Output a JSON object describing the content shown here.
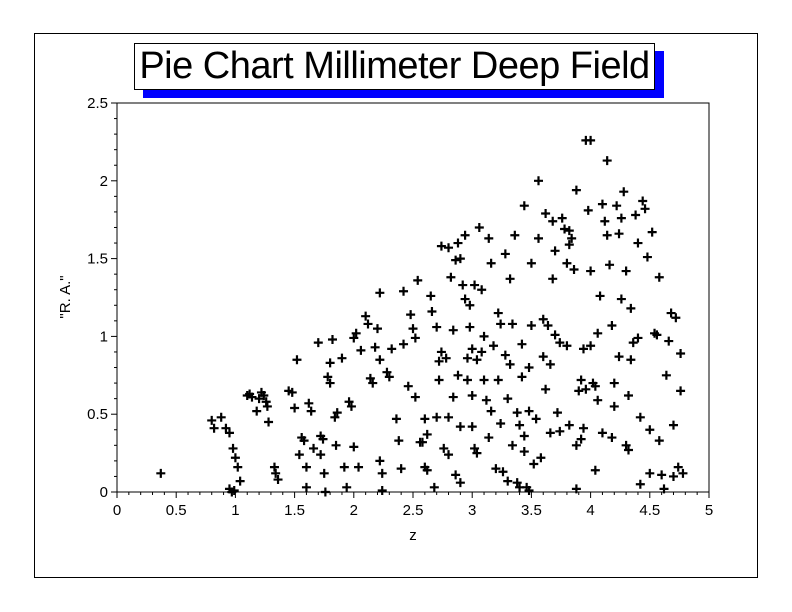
{
  "chart_data": {
    "type": "scatter",
    "title": "Pie Chart Millimeter Deep Field",
    "xlabel": "z",
    "ylabel": "\"R. A.\"",
    "xlim": [
      0,
      5
    ],
    "ylim": [
      0,
      2.5
    ],
    "xticks": [
      "0",
      "0.5",
      "1",
      "1.5",
      "2",
      "2.5",
      "3",
      "3.5",
      "4",
      "4.5",
      "5"
    ],
    "yticks": [
      "0",
      "0.5",
      "1",
      "1.5",
      "2",
      "2.5"
    ],
    "grid": false,
    "legend": "none",
    "marker": "plus",
    "colors": {
      "marker": "#000000",
      "title_shadow": "#0000ff"
    },
    "points": [
      [
        0.37,
        0.12
      ],
      [
        0.8,
        0.46
      ],
      [
        0.82,
        0.41
      ],
      [
        0.88,
        0.48
      ],
      [
        0.92,
        0.41
      ],
      [
        0.95,
        0.38
      ],
      [
        0.95,
        0.02
      ],
      [
        0.97,
        0.0
      ],
      [
        0.99,
        0.01
      ],
      [
        0.98,
        0.28
      ],
      [
        1.0,
        0.22
      ],
      [
        1.02,
        0.16
      ],
      [
        1.04,
        0.07
      ],
      [
        1.1,
        0.62
      ],
      [
        1.12,
        0.63
      ],
      [
        1.14,
        0.61
      ],
      [
        1.18,
        0.52
      ],
      [
        1.2,
        0.6
      ],
      [
        1.22,
        0.64
      ],
      [
        1.24,
        0.62
      ],
      [
        1.26,
        0.58
      ],
      [
        1.27,
        0.55
      ],
      [
        1.28,
        0.45
      ],
      [
        1.33,
        0.16
      ],
      [
        1.34,
        0.12
      ],
      [
        1.36,
        0.08
      ],
      [
        1.45,
        0.65
      ],
      [
        1.48,
        0.64
      ],
      [
        1.5,
        0.54
      ],
      [
        1.52,
        0.85
      ],
      [
        1.54,
        0.24
      ],
      [
        1.56,
        0.35
      ],
      [
        1.58,
        0.33
      ],
      [
        1.6,
        0.16
      ],
      [
        1.6,
        0.03
      ],
      [
        1.62,
        0.57
      ],
      [
        1.64,
        0.52
      ],
      [
        1.66,
        0.28
      ],
      [
        1.7,
        0.96
      ],
      [
        1.72,
        0.36
      ],
      [
        1.72,
        0.24
      ],
      [
        1.74,
        0.34
      ],
      [
        1.75,
        0.12
      ],
      [
        1.76,
        0.0
      ],
      [
        1.78,
        0.74
      ],
      [
        1.8,
        0.7
      ],
      [
        1.8,
        0.83
      ],
      [
        1.82,
        0.98
      ],
      [
        1.84,
        0.48
      ],
      [
        1.85,
        0.3
      ],
      [
        1.86,
        0.51
      ],
      [
        1.9,
        0.86
      ],
      [
        1.92,
        0.16
      ],
      [
        1.94,
        0.03
      ],
      [
        1.96,
        0.58
      ],
      [
        1.98,
        0.55
      ],
      [
        2.0,
        0.99
      ],
      [
        2.02,
        1.02
      ],
      [
        2.0,
        0.29
      ],
      [
        2.04,
        0.16
      ],
      [
        2.06,
        0.91
      ],
      [
        2.1,
        1.13
      ],
      [
        2.12,
        1.08
      ],
      [
        2.14,
        0.73
      ],
      [
        2.16,
        0.7
      ],
      [
        2.18,
        0.93
      ],
      [
        2.2,
        1.05
      ],
      [
        2.22,
        0.2
      ],
      [
        2.24,
        0.12
      ],
      [
        2.22,
        0.85
      ],
      [
        2.24,
        0.01
      ],
      [
        2.22,
        1.28
      ],
      [
        2.28,
        0.77
      ],
      [
        2.3,
        0.74
      ],
      [
        2.32,
        0.92
      ],
      [
        2.36,
        0.47
      ],
      [
        2.38,
        0.33
      ],
      [
        2.4,
        0.15
      ],
      [
        2.42,
        0.95
      ],
      [
        2.42,
        1.29
      ],
      [
        2.46,
        0.68
      ],
      [
        2.48,
        1.14
      ],
      [
        2.5,
        1.05
      ],
      [
        2.52,
        0.99
      ],
      [
        2.52,
        0.61
      ],
      [
        2.54,
        1.36
      ],
      [
        2.56,
        0.32
      ],
      [
        2.58,
        0.32
      ],
      [
        2.6,
        0.47
      ],
      [
        2.6,
        0.16
      ],
      [
        2.62,
        0.14
      ],
      [
        2.62,
        0.37
      ],
      [
        2.65,
        1.26
      ],
      [
        2.66,
        1.16
      ],
      [
        2.68,
        0.03
      ],
      [
        2.7,
        0.48
      ],
      [
        2.7,
        1.06
      ],
      [
        2.72,
        0.72
      ],
      [
        2.72,
        0.84
      ],
      [
        2.74,
        0.9
      ],
      [
        2.74,
        1.58
      ],
      [
        2.76,
        0.28
      ],
      [
        2.78,
        0.86
      ],
      [
        2.8,
        0.48
      ],
      [
        2.8,
        0.24
      ],
      [
        2.8,
        1.57
      ],
      [
        2.82,
        1.38
      ],
      [
        2.84,
        1.04
      ],
      [
        2.84,
        0.61
      ],
      [
        2.86,
        1.49
      ],
      [
        2.86,
        0.11
      ],
      [
        2.88,
        0.75
      ],
      [
        2.88,
        1.6
      ],
      [
        2.9,
        0.42
      ],
      [
        2.9,
        1.5
      ],
      [
        2.9,
        0.06
      ],
      [
        2.92,
        1.33
      ],
      [
        2.94,
        1.65
      ],
      [
        2.94,
        1.24
      ],
      [
        2.96,
        0.86
      ],
      [
        2.96,
        0.72
      ],
      [
        2.98,
        1.06
      ],
      [
        3.0,
        0.92
      ],
      [
        3.0,
        0.62
      ],
      [
        3.0,
        0.42
      ],
      [
        3.02,
        0.28
      ],
      [
        3.02,
        1.33
      ],
      [
        3.04,
        0.85
      ],
      [
        3.04,
        0.25
      ],
      [
        3.06,
        1.7
      ],
      [
        3.08,
        1.3
      ],
      [
        3.08,
        0.9
      ],
      [
        3.1,
        1.0
      ],
      [
        3.1,
        0.72
      ],
      [
        3.12,
        0.59
      ],
      [
        3.14,
        0.35
      ],
      [
        3.14,
        1.63
      ],
      [
        3.16,
        1.47
      ],
      [
        3.18,
        0.94
      ],
      [
        3.2,
        0.15
      ],
      [
        3.22,
        0.72
      ],
      [
        3.22,
        1.15
      ],
      [
        3.24,
        1.08
      ],
      [
        3.24,
        0.44
      ],
      [
        3.26,
        0.13
      ],
      [
        3.28,
        0.88
      ],
      [
        3.28,
        1.53
      ],
      [
        3.3,
        0.6
      ],
      [
        3.3,
        0.07
      ],
      [
        3.32,
        0.82
      ],
      [
        3.32,
        1.37
      ],
      [
        3.34,
        0.3
      ],
      [
        3.34,
        1.08
      ],
      [
        3.36,
        1.65
      ],
      [
        3.38,
        0.51
      ],
      [
        3.38,
        0.06
      ],
      [
        3.4,
        0.43
      ],
      [
        3.4,
        0.03
      ],
      [
        3.42,
        0.95
      ],
      [
        3.42,
        0.74
      ],
      [
        3.44,
        1.84
      ],
      [
        3.44,
        0.36
      ],
      [
        3.44,
        0.26
      ],
      [
        3.46,
        0.03
      ],
      [
        3.48,
        0.8
      ],
      [
        3.48,
        0.52
      ],
      [
        3.48,
        0.01
      ],
      [
        3.5,
        1.07
      ],
      [
        3.5,
        1.47
      ],
      [
        3.52,
        0.18
      ],
      [
        3.54,
        0.47
      ],
      [
        3.56,
        1.63
      ],
      [
        3.56,
        2.0
      ],
      [
        3.58,
        0.22
      ],
      [
        3.6,
        1.11
      ],
      [
        3.6,
        0.87
      ],
      [
        3.62,
        0.66
      ],
      [
        3.62,
        1.79
      ],
      [
        3.64,
        1.07
      ],
      [
        3.66,
        0.82
      ],
      [
        3.68,
        1.74
      ],
      [
        3.68,
        1.37
      ],
      [
        3.7,
        1.55
      ],
      [
        3.7,
        1.01
      ],
      [
        3.72,
        0.51
      ],
      [
        3.74,
        0.96
      ],
      [
        3.74,
        0.39
      ],
      [
        3.76,
        1.76
      ],
      [
        3.78,
        1.69
      ],
      [
        3.8,
        0.94
      ],
      [
        3.8,
        1.47
      ],
      [
        3.82,
        0.43
      ],
      [
        3.82,
        1.59
      ],
      [
        3.82,
        1.68
      ],
      [
        3.84,
        1.63
      ],
      [
        3.86,
        1.43
      ],
      [
        3.88,
        0.3
      ],
      [
        3.88,
        0.02
      ],
      [
        3.88,
        1.94
      ],
      [
        3.9,
        0.65
      ],
      [
        3.92,
        0.34
      ],
      [
        3.92,
        0.72
      ],
      [
        3.94,
        0.41
      ],
      [
        3.94,
        0.92
      ],
      [
        3.96,
        2.26
      ],
      [
        3.98,
        1.81
      ],
      [
        4.0,
        1.42
      ],
      [
        4.0,
        0.94
      ],
      [
        4.0,
        2.26
      ],
      [
        4.02,
        0.7
      ],
      [
        4.04,
        0.68
      ],
      [
        4.04,
        0.14
      ],
      [
        4.06,
        1.02
      ],
      [
        4.06,
        0.59
      ],
      [
        4.08,
        1.26
      ],
      [
        4.1,
        1.85
      ],
      [
        4.1,
        0.38
      ],
      [
        4.12,
        1.74
      ],
      [
        4.14,
        2.13
      ],
      [
        4.14,
        1.65
      ],
      [
        4.16,
        1.46
      ],
      [
        4.18,
        1.07
      ],
      [
        4.18,
        0.35
      ],
      [
        4.2,
        0.7
      ],
      [
        4.22,
        1.84
      ],
      [
        4.24,
        1.66
      ],
      [
        4.24,
        0.87
      ],
      [
        4.26,
        1.76
      ],
      [
        4.26,
        1.24
      ],
      [
        4.28,
        1.93
      ],
      [
        4.3,
        1.42
      ],
      [
        4.32,
        0.62
      ],
      [
        4.32,
        0.27
      ],
      [
        4.34,
        1.18
      ],
      [
        4.34,
        0.85
      ],
      [
        4.36,
        0.96
      ],
      [
        4.38,
        1.78
      ],
      [
        4.4,
        1.6
      ],
      [
        4.4,
        0.99
      ],
      [
        4.42,
        0.48
      ],
      [
        4.42,
        0.05
      ],
      [
        4.44,
        1.87
      ],
      [
        4.46,
        1.82
      ],
      [
        4.48,
        1.51
      ],
      [
        4.5,
        0.4
      ],
      [
        4.5,
        0.12
      ],
      [
        4.52,
        1.67
      ],
      [
        4.54,
        1.02
      ],
      [
        4.56,
        1.01
      ],
      [
        4.58,
        0.33
      ],
      [
        4.58,
        1.38
      ],
      [
        4.6,
        0.11
      ],
      [
        4.62,
        0.02
      ],
      [
        4.64,
        0.75
      ],
      [
        4.66,
        0.97
      ],
      [
        4.68,
        1.15
      ],
      [
        4.7,
        0.43
      ],
      [
        4.7,
        0.1
      ],
      [
        4.72,
        1.12
      ],
      [
        4.74,
        0.16
      ],
      [
        4.76,
        0.65
      ],
      [
        4.76,
        0.89
      ],
      [
        4.78,
        0.12
      ],
      [
        4.3,
        0.3
      ],
      [
        4.2,
        0.55
      ],
      [
        3.96,
        0.66
      ],
      [
        3.66,
        0.38
      ],
      [
        3.16,
        0.52
      ],
      [
        2.98,
        1.2
      ]
    ]
  }
}
